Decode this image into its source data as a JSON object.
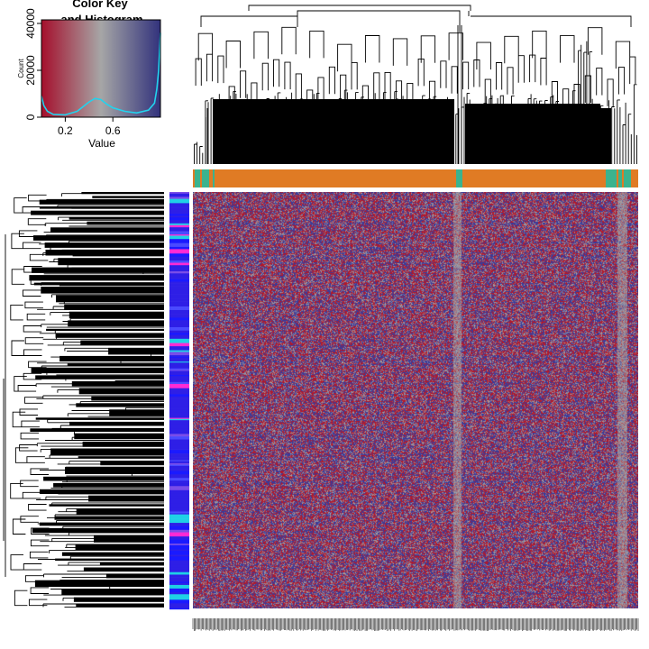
{
  "chart_data": {
    "type": "heatmap",
    "title": "",
    "color_key": {
      "title_line1": "Color Key",
      "title_line2": "and Histogram",
      "xlabel": "Value",
      "ylabel": "Count",
      "x_ticks": [
        "0.2",
        "0.6"
      ],
      "y_ticks": [
        "0",
        "20000",
        "40000"
      ],
      "x_range": [
        0,
        1
      ],
      "y_range": [
        0,
        40000
      ],
      "histogram": {
        "x": [
          0.0,
          0.02,
          0.05,
          0.1,
          0.2,
          0.3,
          0.4,
          0.45,
          0.5,
          0.55,
          0.6,
          0.7,
          0.8,
          0.9,
          0.95,
          0.97,
          0.985,
          1.0
        ],
        "count": [
          9000,
          5000,
          2500,
          1200,
          1000,
          2500,
          6500,
          8000,
          7500,
          5500,
          4000,
          2500,
          1800,
          3000,
          6000,
          12000,
          20000,
          36000
        ]
      },
      "colors": {
        "low": "#a50f2c",
        "mid": "#a6a6a6",
        "high": "#32327c",
        "histogram_line": "#22d3ee"
      }
    },
    "column_annotation_colors": {
      "majority": "#e07b24",
      "minority": "#3bb38e"
    },
    "row_annotation_colors": [
      "#2e1fe6",
      "#1a1aff",
      "#4a4aff",
      "#7a4de8",
      "#1fd0e6",
      "#ff2ad4"
    ],
    "heatmap_colors": {
      "red": "#b2182b",
      "grey": "#a6a6a6",
      "blue": "#3a3a9a"
    },
    "column_labels_present": true
  }
}
